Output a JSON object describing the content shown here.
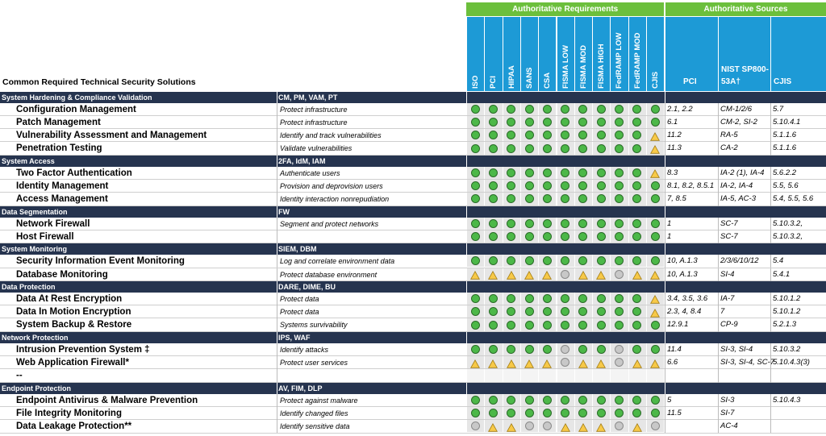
{
  "header": {
    "left_title": "Common Required Technical Security Solutions",
    "groups": [
      {
        "label": "Authoritative Requirements",
        "columns": [
          "ISO",
          "PCI",
          "HIPAA",
          "SANS",
          "CSA",
          "FISMA LOW",
          "FISMA MOD",
          "FISMA HIGH",
          "FedRAMP LOW",
          "FedRAMP MOD",
          "CJIS"
        ]
      },
      {
        "label": "Authoritative Sources",
        "columns": [
          "PCI",
          "NIST SP800-53A†",
          "CJIS"
        ]
      }
    ]
  },
  "sections": [
    {
      "name": "System Hardening & Compliance Validation",
      "abbreviations": "CM, PM, VAM, PT",
      "rows": [
        {
          "solution": "Configuration Management",
          "purpose": "Protect infrastructure",
          "status": [
            "green",
            "green",
            "green",
            "green",
            "green",
            "green",
            "green",
            "green",
            "green",
            "green",
            "green"
          ],
          "sources": [
            "2.1, 2.2",
            "CM-1/2/6",
            "5.7"
          ]
        },
        {
          "solution": "Patch Management",
          "purpose": "Protect infrastructure",
          "status": [
            "green",
            "green",
            "green",
            "green",
            "green",
            "green",
            "green",
            "green",
            "green",
            "green",
            "green"
          ],
          "sources": [
            "6.1",
            "CM-2, SI-2",
            "5.10.4.1"
          ]
        },
        {
          "solution": "Vulnerability Assessment and Management",
          "purpose": "Identify and track vulnerabilities",
          "status": [
            "green",
            "green",
            "green",
            "green",
            "green",
            "green",
            "green",
            "green",
            "green",
            "green",
            "yellow"
          ],
          "sources": [
            "11.2",
            "RA-5",
            "5.1.1.6"
          ]
        },
        {
          "solution": "Penetration Testing",
          "purpose": "Validate vulnerabilities",
          "status": [
            "green",
            "green",
            "green",
            "green",
            "green",
            "green",
            "green",
            "green",
            "green",
            "green",
            "yellow"
          ],
          "sources": [
            "11.3",
            "CA-2",
            "5.1.1.6"
          ]
        }
      ]
    },
    {
      "name": "System Access",
      "abbreviations": "2FA, IdM, IAM",
      "rows": [
        {
          "solution": "Two Factor Authentication",
          "purpose": "Authenticate users",
          "status": [
            "green",
            "green",
            "green",
            "green",
            "green",
            "green",
            "green",
            "green",
            "green",
            "green",
            "yellow"
          ],
          "sources": [
            "8.3",
            "IA-2 (1), IA-4",
            "5.6.2.2"
          ]
        },
        {
          "solution": "Identity Management",
          "purpose": "Provision and deprovision users",
          "status": [
            "green",
            "green",
            "green",
            "green",
            "green",
            "green",
            "green",
            "green",
            "green",
            "green",
            "green"
          ],
          "sources": [
            "8.1, 8.2, 8.5.1",
            "IA-2, IA-4",
            "5.5, 5.6"
          ]
        },
        {
          "solution": "Access Management",
          "purpose": "Identity interaction nonrepudiation",
          "status": [
            "green",
            "green",
            "green",
            "green",
            "green",
            "green",
            "green",
            "green",
            "green",
            "green",
            "green"
          ],
          "sources": [
            "7, 8.5",
            "IA-5, AC-3",
            "5.4, 5.5, 5.6"
          ]
        }
      ]
    },
    {
      "name": "Data Segmentation",
      "abbreviations": "FW",
      "rows": [
        {
          "solution": "Network Firewall",
          "purpose": "Segment and protect networks",
          "status": [
            "green",
            "green",
            "green",
            "green",
            "green",
            "green",
            "green",
            "green",
            "green",
            "green",
            "green"
          ],
          "sources": [
            "1",
            "SC-7",
            "5.10.3.2,"
          ]
        },
        {
          "solution": "Host Firewall",
          "purpose": null,
          "status": [
            "green",
            "green",
            "green",
            "green",
            "green",
            "green",
            "green",
            "green",
            "green",
            "green",
            "green"
          ],
          "sources": [
            "1",
            "SC-7",
            "5.10.3.2,"
          ]
        }
      ]
    },
    {
      "name": "System Monitoring",
      "abbreviations": "SIEM, DBM",
      "rows": [
        {
          "solution": "Security Information Event Monitoring",
          "purpose": "Log and correlate environment data",
          "status": [
            "green",
            "green",
            "green",
            "green",
            "green",
            "green",
            "green",
            "green",
            "green",
            "green",
            "green"
          ],
          "sources": [
            "10, A.1.3",
            "2/3/6/10/12",
            "5.4"
          ]
        },
        {
          "solution": "Database Monitoring",
          "purpose": "Protect database environment",
          "status": [
            "yellow",
            "yellow",
            "yellow",
            "yellow",
            "yellow",
            "gray",
            "yellow",
            "yellow",
            "gray",
            "yellow",
            "yellow"
          ],
          "sources": [
            "10, A.1.3",
            "SI-4",
            "5.4.1"
          ]
        }
      ]
    },
    {
      "name": "Data Protection",
      "abbreviations": "DARE, DIME, BU",
      "rows": [
        {
          "solution": "Data At Rest Encryption",
          "purpose": "Protect data",
          "status": [
            "green",
            "green",
            "green",
            "green",
            "green",
            "green",
            "green",
            "green",
            "green",
            "green",
            "yellow"
          ],
          "sources": [
            "3.4, 3.5, 3.6",
            "IA-7",
            "5.10.1.2"
          ]
        },
        {
          "solution": "Data In Motion Encryption",
          "purpose": "Protect data",
          "status": [
            "green",
            "green",
            "green",
            "green",
            "green",
            "green",
            "green",
            "green",
            "green",
            "green",
            "yellow"
          ],
          "sources": [
            "2.3, 4, 8.4",
            "7",
            "5.10.1.2"
          ]
        },
        {
          "solution": "System Backup & Restore",
          "purpose": "Systems survivability",
          "status": [
            "green",
            "green",
            "green",
            "green",
            "green",
            "green",
            "green",
            "green",
            "green",
            "green",
            "green"
          ],
          "sources": [
            "12.9.1",
            "CP-9",
            "5.2.1.3"
          ]
        }
      ]
    },
    {
      "name": "Network Protection",
      "abbreviations": "IPS, WAF",
      "rows": [
        {
          "solution": "Intrusion Prevention System ‡",
          "purpose": "Identify attacks",
          "status": [
            "green",
            "green",
            "green",
            "green",
            "green",
            "gray",
            "green",
            "green",
            "gray",
            "green",
            "green"
          ],
          "sources": [
            "11.4",
            "SI-3, SI-4",
            "5.10.3.2"
          ]
        },
        {
          "solution": "Web Application Firewall*",
          "purpose": "Protect user services",
          "status": [
            "yellow",
            "yellow",
            "yellow",
            "yellow",
            "yellow",
            "gray",
            "yellow",
            "yellow",
            "gray",
            "yellow",
            "yellow"
          ],
          "sources": [
            "6.6",
            "SI-3, SI-4, SC-7",
            "5.10.4.3(3)"
          ]
        },
        {
          "solution": "--",
          "purpose": null,
          "status": null,
          "sources": [
            null,
            null,
            null
          ]
        }
      ]
    },
    {
      "name": "Endpoint Protection",
      "abbreviations": "AV, FIM, DLP",
      "rows": [
        {
          "solution": "Endpoint Antivirus & Malware Prevention",
          "purpose": "Protect against malware",
          "status": [
            "green",
            "green",
            "green",
            "green",
            "green",
            "green",
            "green",
            "green",
            "green",
            "green",
            "green"
          ],
          "sources": [
            "5",
            "SI-3",
            "5.10.4.3"
          ]
        },
        {
          "solution": "File Integrity Monitoring",
          "purpose": "Identify changed files",
          "status": [
            "green",
            "green",
            "green",
            "green",
            "green",
            "green",
            "green",
            "green",
            "green",
            "green",
            "green"
          ],
          "sources": [
            "11.5",
            "SI-7",
            null
          ]
        },
        {
          "solution": "Data Leakage Protection**",
          "purpose": "Identify sensitive data",
          "status": [
            "gray",
            "yellow",
            "yellow",
            "gray",
            "gray",
            "yellow",
            "yellow",
            "yellow",
            "gray",
            "yellow",
            "gray"
          ],
          "sources": [
            null,
            "AC-4",
            null
          ]
        }
      ]
    }
  ]
}
